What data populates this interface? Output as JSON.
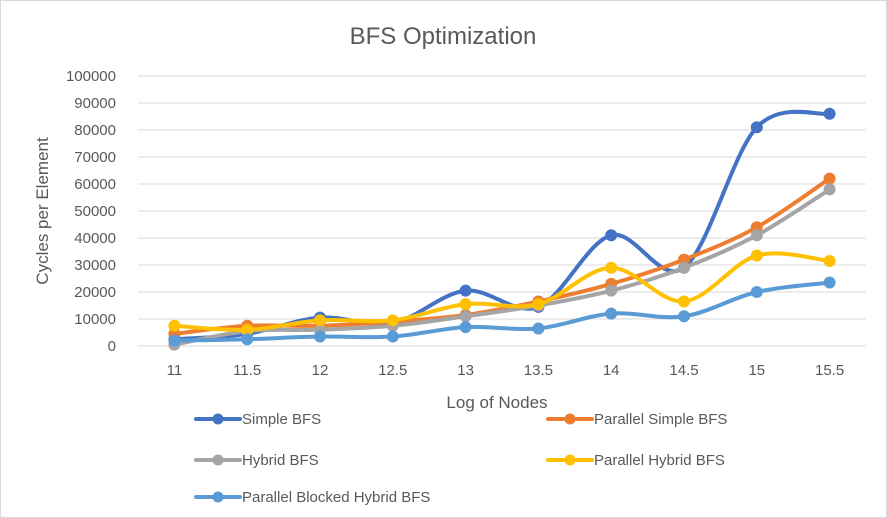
{
  "chart_data": {
    "type": "line",
    "title": "BFS Optimization",
    "xlabel": "Log of Nodes",
    "ylabel": "Cycles per Element",
    "categories": [
      "11",
      "11.5",
      "12",
      "12.5",
      "13",
      "13.5",
      "14",
      "14.5",
      "15",
      "15.5"
    ],
    "ylim": [
      0,
      100000
    ],
    "yticks": [
      "0",
      "10000",
      "20000",
      "30000",
      "40000",
      "50000",
      "60000",
      "70000",
      "80000",
      "90000",
      "100000"
    ],
    "grid": true,
    "smooth": true,
    "legend_position": "bottom",
    "series": [
      {
        "name": "Simple BFS",
        "color": "#4472c4",
        "values": [
          2500,
          4500,
          10500,
          8500,
          20500,
          14500,
          41000,
          29000,
          81000,
          86000
        ]
      },
      {
        "name": "Parallel Simple BFS",
        "color": "#ed7d31",
        "values": [
          4500,
          7500,
          7500,
          9000,
          11500,
          16500,
          23000,
          32000,
          44000,
          62000
        ]
      },
      {
        "name": "Hybrid BFS",
        "color": "#a5a5a5",
        "values": [
          500,
          5500,
          6000,
          7500,
          11000,
          15000,
          20500,
          29000,
          41000,
          58000
        ]
      },
      {
        "name": "Parallel Hybrid BFS",
        "color": "#ffc000",
        "values": [
          7500,
          6000,
          9500,
          9500,
          15500,
          15500,
          29000,
          16500,
          33500,
          31500
        ]
      },
      {
        "name": "Parallel Blocked Hybrid BFS",
        "color": "#5b9bd5",
        "values": [
          2000,
          2500,
          3500,
          3500,
          7000,
          6500,
          12000,
          11000,
          20000,
          23500
        ]
      }
    ]
  }
}
